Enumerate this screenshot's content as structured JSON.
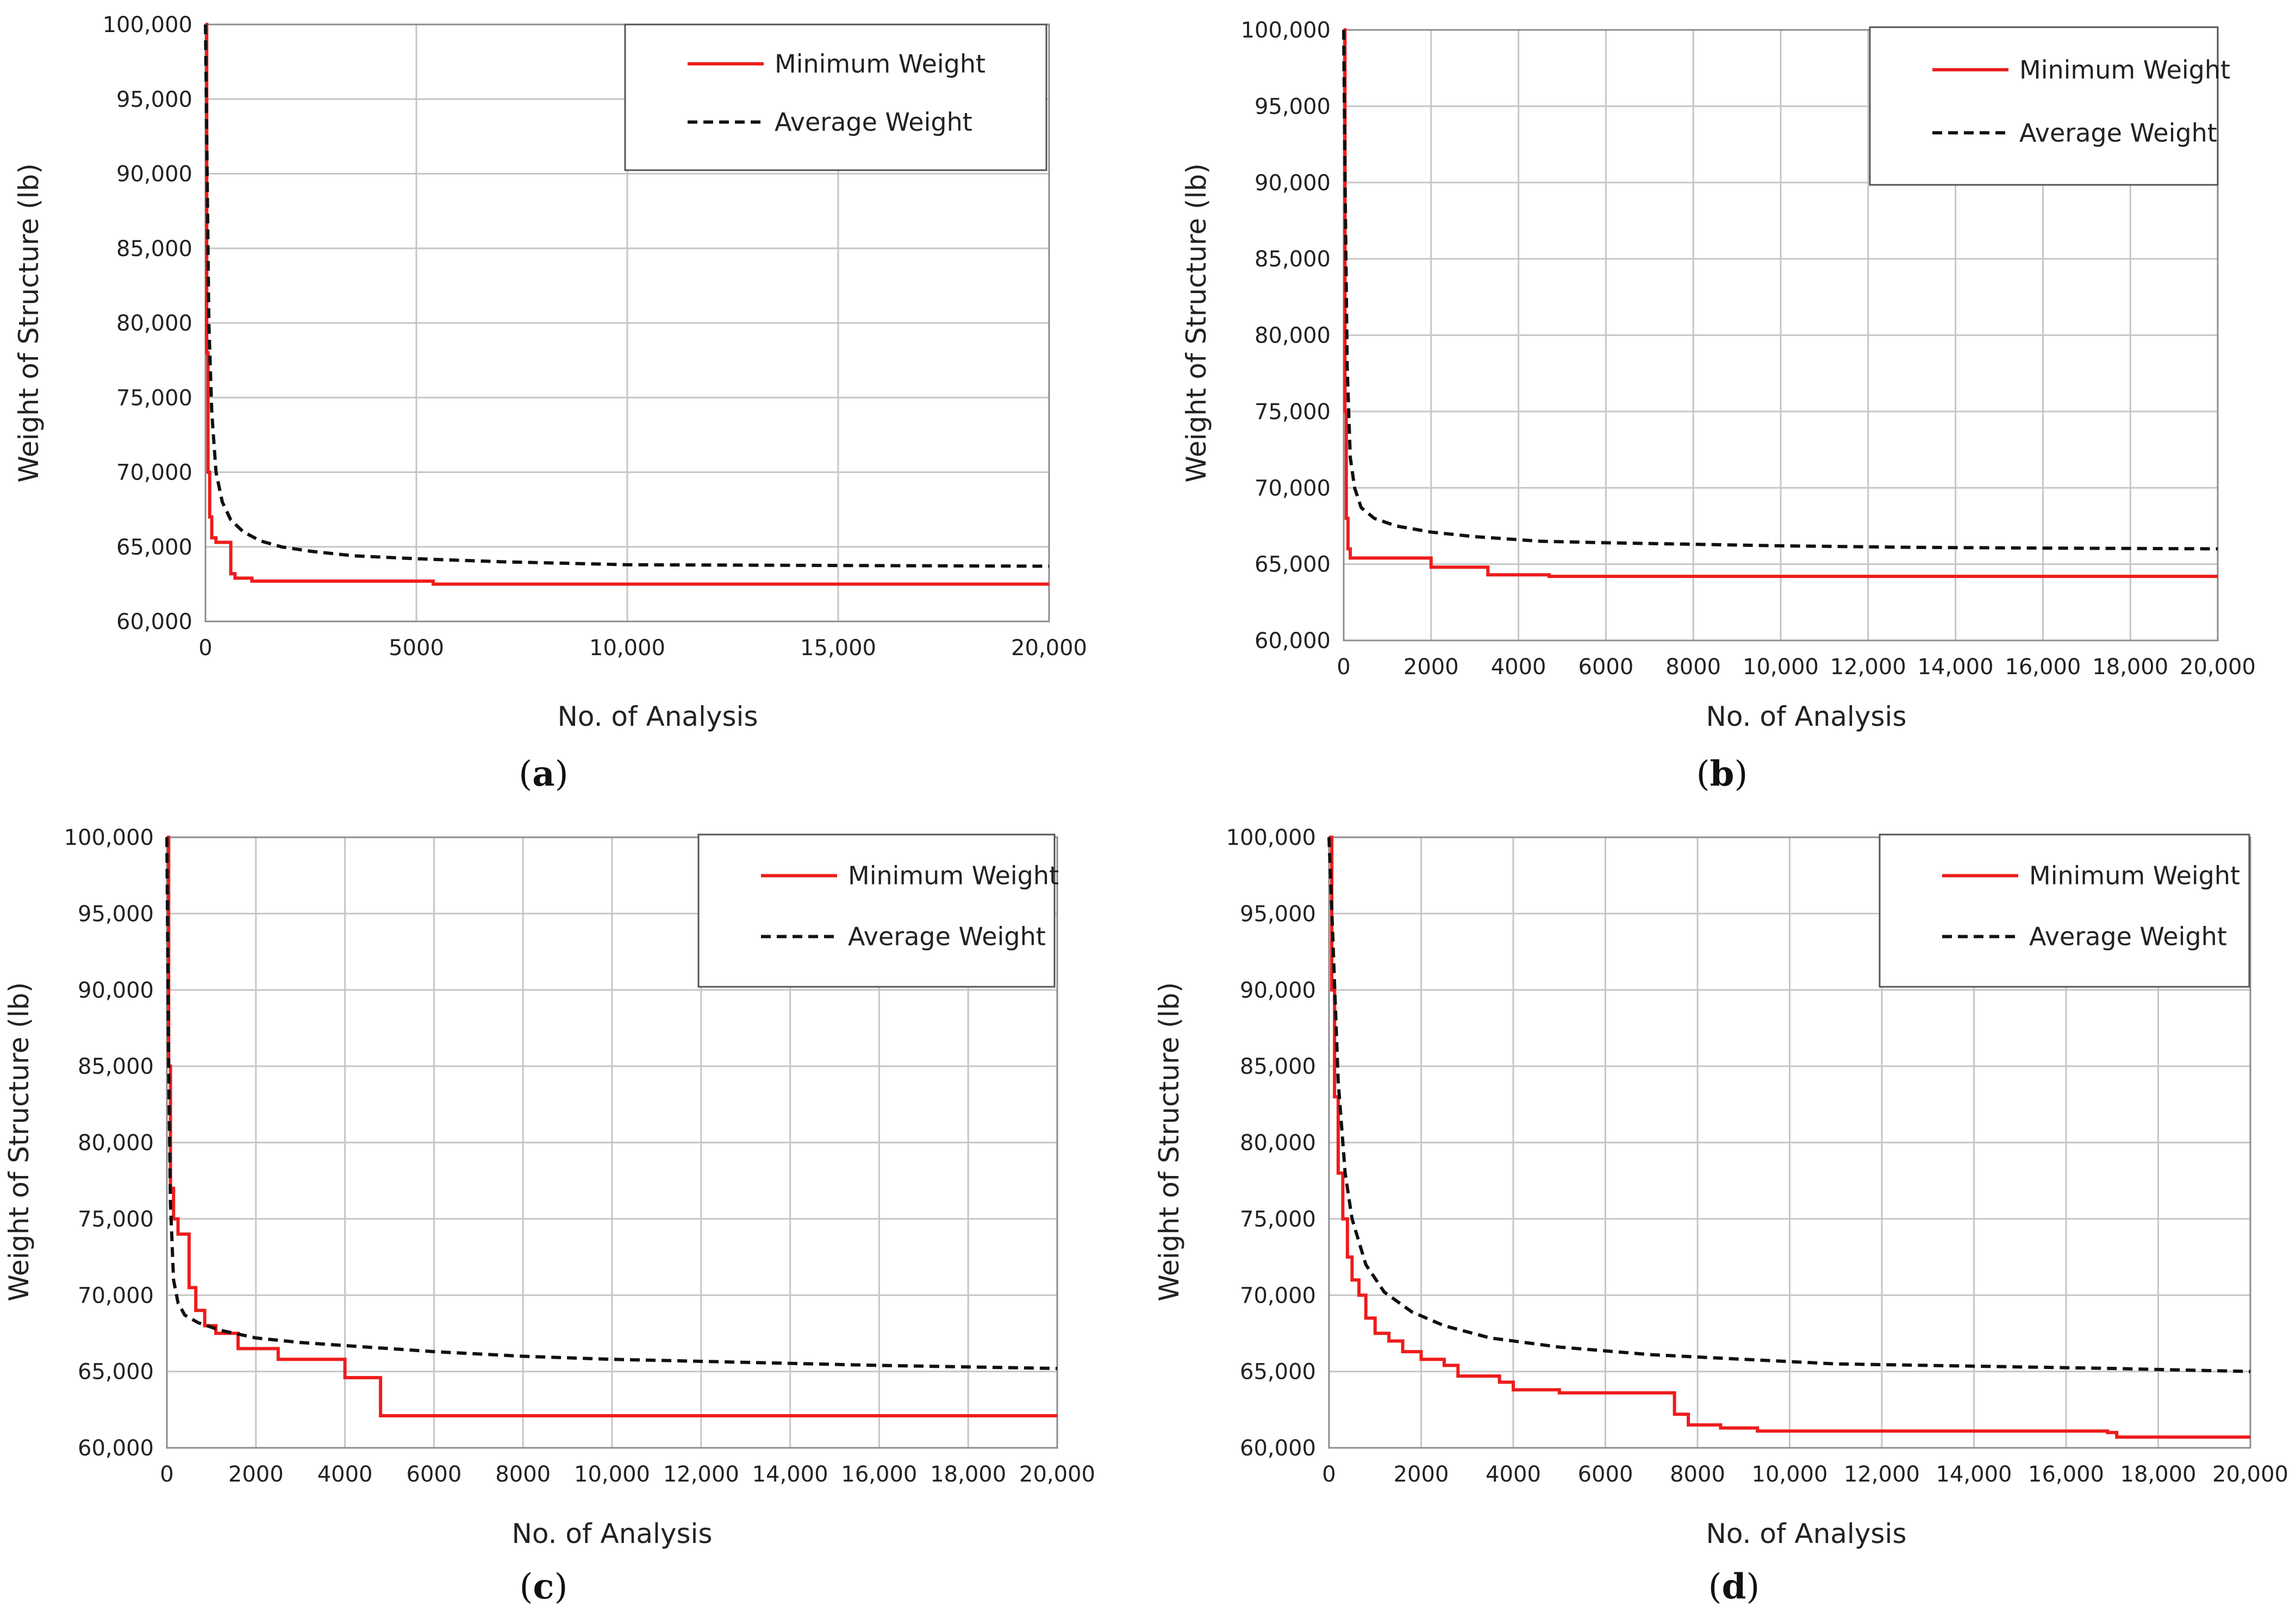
{
  "colors": {
    "minimum": "#ee1c1c",
    "average": "#111111",
    "grid": "#c6c6c6",
    "frame": "#8c8c8c",
    "text": "#222222"
  },
  "legend": {
    "minimum_label": "Minimum Weight",
    "average_label": "Average Weight",
    "placement": "top-right"
  },
  "chart_data": [
    {
      "type": "line",
      "panel": "a",
      "caption_letter": "a",
      "title": "",
      "xlabel": "No. of Analysis",
      "ylabel": "Weight of Structure (lb)",
      "xlim": [
        0,
        20000
      ],
      "ylim": [
        60000,
        100000
      ],
      "x_ticks": [
        0,
        5000,
        10000,
        15000,
        20000
      ],
      "x_tick_labels": [
        "0",
        "5000",
        "10,000",
        "15,000",
        "20,000"
      ],
      "y_ticks": [
        60000,
        65000,
        70000,
        75000,
        80000,
        85000,
        90000,
        95000,
        100000
      ],
      "y_tick_labels": [
        "60,000",
        "65,000",
        "70,000",
        "75,000",
        "80,000",
        "85,000",
        "90,000",
        "95,000",
        "100,000"
      ],
      "grid": true,
      "series": [
        {
          "name": "Minimum Weight",
          "style": "solid",
          "step": true,
          "x": [
            0,
            30,
            60,
            100,
            150,
            250,
            600,
            700,
            1100,
            5400,
            20000
          ],
          "y": [
            100000,
            78000,
            70000,
            67000,
            65600,
            65300,
            63200,
            62900,
            62700,
            62500,
            62500
          ]
        },
        {
          "name": "Average Weight",
          "style": "dashed",
          "step": false,
          "x": [
            0,
            40,
            80,
            150,
            250,
            400,
            600,
            900,
            1300,
            1800,
            2500,
            3500,
            5000,
            7000,
            10000,
            15000,
            20000
          ],
          "y": [
            100000,
            90000,
            80000,
            74000,
            70000,
            68000,
            66800,
            66000,
            65400,
            65000,
            64700,
            64400,
            64200,
            64000,
            63800,
            63750,
            63700
          ]
        }
      ]
    },
    {
      "type": "line",
      "panel": "b",
      "caption_letter": "b",
      "title": "",
      "xlabel": "No. of Analysis",
      "ylabel": "Weight of Structure (lb)",
      "xlim": [
        0,
        20000
      ],
      "ylim": [
        60000,
        100000
      ],
      "x_ticks": [
        0,
        2000,
        4000,
        6000,
        8000,
        10000,
        12000,
        14000,
        16000,
        18000,
        20000
      ],
      "x_tick_labels": [
        "0",
        "2000",
        "4000",
        "6000",
        "8000",
        "10,000",
        "12,000",
        "14,000",
        "16,000",
        "18,000",
        "20,000"
      ],
      "y_ticks": [
        60000,
        65000,
        70000,
        75000,
        80000,
        85000,
        90000,
        95000,
        100000
      ],
      "y_tick_labels": [
        "60,000",
        "65,000",
        "70,000",
        "75,000",
        "80,000",
        "85,000",
        "90,000",
        "95,000",
        "100,000"
      ],
      "grid": true,
      "series": [
        {
          "name": "Minimum Weight",
          "style": "solid",
          "step": true,
          "x": [
            0,
            30,
            60,
            100,
            150,
            2000,
            3300,
            4700,
            20000
          ],
          "y": [
            100000,
            75000,
            68000,
            66000,
            65400,
            64800,
            64300,
            64200,
            64200
          ]
        },
        {
          "name": "Average Weight",
          "style": "dashed",
          "step": false,
          "x": [
            0,
            40,
            80,
            150,
            250,
            400,
            700,
            1200,
            2000,
            3000,
            4500,
            6000,
            8000,
            10000,
            13000,
            16000,
            20000
          ],
          "y": [
            100000,
            88000,
            78000,
            72000,
            70000,
            68700,
            68000,
            67500,
            67100,
            66800,
            66500,
            66400,
            66300,
            66200,
            66100,
            66050,
            66000
          ]
        }
      ]
    },
    {
      "type": "line",
      "panel": "c",
      "caption_letter": "c",
      "title": "",
      "xlabel": "No. of Analysis",
      "ylabel": "Weight of Structure (lb)",
      "xlim": [
        0,
        20000
      ],
      "ylim": [
        60000,
        100000
      ],
      "x_ticks": [
        0,
        2000,
        4000,
        6000,
        8000,
        10000,
        12000,
        14000,
        16000,
        18000,
        20000
      ],
      "x_tick_labels": [
        "0",
        "2000",
        "4000",
        "6000",
        "8000",
        "10,000",
        "12,000",
        "14,000",
        "16,000",
        "18,000",
        "20,000"
      ],
      "y_ticks": [
        60000,
        65000,
        70000,
        75000,
        80000,
        85000,
        90000,
        95000,
        100000
      ],
      "y_tick_labels": [
        "60,000",
        "65,000",
        "70,000",
        "75,000",
        "80,000",
        "85,000",
        "90,000",
        "95,000",
        "100,000"
      ],
      "grid": true,
      "series": [
        {
          "name": "Minimum Weight",
          "style": "solid",
          "step": true,
          "x": [
            0,
            40,
            80,
            150,
            250,
            500,
            650,
            850,
            1100,
            1600,
            2500,
            4000,
            4800,
            20000
          ],
          "y": [
            100000,
            85000,
            77000,
            75000,
            74000,
            70500,
            69000,
            68000,
            67500,
            66500,
            65800,
            64600,
            62100,
            62100
          ]
        },
        {
          "name": "Average Weight",
          "style": "dashed",
          "step": false,
          "x": [
            0,
            40,
            80,
            150,
            250,
            400,
            700,
            1200,
            2000,
            3000,
            4500,
            6000,
            8000,
            10000,
            13000,
            16000,
            20000
          ],
          "y": [
            100000,
            85000,
            76000,
            71000,
            69500,
            68700,
            68200,
            67700,
            67200,
            66900,
            66600,
            66300,
            66000,
            65800,
            65600,
            65400,
            65200
          ]
        }
      ]
    },
    {
      "type": "line",
      "panel": "d",
      "caption_letter": "d",
      "title": "",
      "xlabel": "No. of Analysis",
      "ylabel": "Weight of Structure (lb)",
      "xlim": [
        0,
        20000
      ],
      "ylim": [
        60000,
        100000
      ],
      "x_ticks": [
        0,
        2000,
        4000,
        6000,
        8000,
        10000,
        12000,
        14000,
        16000,
        18000,
        20000
      ],
      "x_tick_labels": [
        "0",
        "2000",
        "4000",
        "6000",
        "8000",
        "10,000",
        "12,000",
        "14,000",
        "16,000",
        "18,000",
        "20,000"
      ],
      "y_ticks": [
        60000,
        65000,
        70000,
        75000,
        80000,
        85000,
        90000,
        95000,
        100000
      ],
      "y_tick_labels": [
        "60,000",
        "65,000",
        "70,000",
        "75,000",
        "80,000",
        "85,000",
        "90,000",
        "95,000",
        "100,000"
      ],
      "grid": true,
      "series": [
        {
          "name": "Minimum Weight",
          "style": "solid",
          "step": true,
          "x": [
            0,
            60,
            120,
            200,
            300,
            400,
            500,
            650,
            800,
            1000,
            1300,
            1600,
            2000,
            2500,
            2800,
            3700,
            4000,
            5000,
            7500,
            7800,
            8500,
            9300,
            16900,
            17100,
            20000
          ],
          "y": [
            100000,
            90000,
            83000,
            78000,
            75000,
            72500,
            71000,
            70000,
            68500,
            67500,
            67000,
            66300,
            65800,
            65400,
            64700,
            64300,
            63800,
            63600,
            62200,
            61500,
            61300,
            61100,
            61000,
            60700,
            60700
          ]
        },
        {
          "name": "Average Weight",
          "style": "dashed",
          "step": false,
          "x": [
            0,
            100,
            200,
            350,
            500,
            800,
            1200,
            1800,
            2500,
            3500,
            5000,
            7000,
            9000,
            11000,
            13000,
            15000,
            17000,
            20000
          ],
          "y": [
            100000,
            92000,
            84000,
            78000,
            75000,
            72000,
            70200,
            68900,
            68000,
            67200,
            66600,
            66100,
            65800,
            65500,
            65400,
            65300,
            65200,
            65000
          ]
        }
      ]
    }
  ]
}
